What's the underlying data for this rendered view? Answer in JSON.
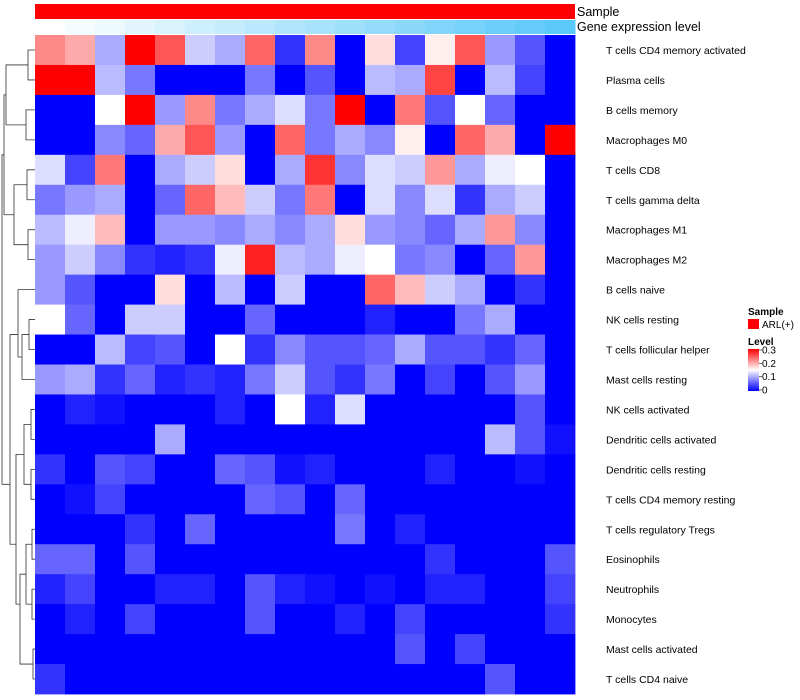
{
  "chart_data": {
    "type": "heatmap",
    "annotations": {
      "sample_label": "Sample",
      "expression_label": "Gene expression level",
      "sample_color": "#ff0000",
      "expression_colors": [
        "#ffffff",
        "#5ac8fa"
      ]
    },
    "rows": [
      "T cells CD4 memory activated",
      "Plasma cells",
      "B cells memory",
      "Macrophages M0",
      "T cells CD8",
      "T cells gamma delta",
      "Macrophages M1",
      "Macrophages M2",
      "B cells naive",
      "NK cells resting",
      "T cells follicular helper",
      "Mast cells resting",
      "NK cells activated",
      "Dendritic cells activated",
      "Dendritic cells resting",
      "T cells CD4 memory resting",
      "T cells regulatory  Tregs",
      "Eosinophils",
      "Neutrophils",
      "Monocytes",
      "Mast cells activated",
      "T cells CD4 naive"
    ],
    "n_columns": 18,
    "values": [
      [
        0.22,
        0.2,
        0.1,
        0.31,
        0.25,
        0.12,
        0.1,
        0.24,
        0.03,
        0.22,
        0.0,
        0.17,
        0.04,
        0.16,
        0.25,
        0.09,
        0.05,
        0.0
      ],
      [
        0.31,
        0.31,
        0.11,
        0.07,
        0.0,
        0.0,
        0.0,
        0.07,
        0.0,
        0.05,
        0.0,
        0.11,
        0.1,
        0.26,
        0.0,
        0.11,
        0.04,
        0.0
      ],
      [
        0.0,
        0.0,
        0.15,
        0.31,
        0.09,
        0.22,
        0.07,
        0.1,
        0.13,
        0.07,
        0.31,
        0.0,
        0.23,
        0.05,
        0.15,
        0.06,
        0.0,
        0.0
      ],
      [
        0.0,
        0.0,
        0.08,
        0.06,
        0.2,
        0.25,
        0.09,
        0.0,
        0.24,
        0.07,
        0.1,
        0.08,
        0.16,
        0.0,
        0.24,
        0.2,
        0.0,
        0.31
      ],
      [
        0.13,
        0.04,
        0.23,
        0.0,
        0.1,
        0.12,
        0.17,
        0.0,
        0.1,
        0.27,
        0.08,
        0.13,
        0.12,
        0.21,
        0.1,
        0.14,
        0.15,
        0.0
      ],
      [
        0.07,
        0.09,
        0.1,
        0.0,
        0.06,
        0.24,
        0.19,
        0.12,
        0.07,
        0.23,
        0.0,
        0.13,
        0.08,
        0.13,
        0.03,
        0.1,
        0.12,
        0.0
      ],
      [
        0.11,
        0.14,
        0.19,
        0.0,
        0.09,
        0.09,
        0.08,
        0.1,
        0.08,
        0.1,
        0.17,
        0.09,
        0.08,
        0.06,
        0.1,
        0.21,
        0.08,
        0.0
      ],
      [
        0.09,
        0.12,
        0.08,
        0.03,
        0.02,
        0.03,
        0.14,
        0.28,
        0.11,
        0.1,
        0.14,
        0.15,
        0.07,
        0.08,
        0.0,
        0.06,
        0.21,
        0.0
      ],
      [
        0.09,
        0.05,
        0.0,
        0.0,
        0.17,
        0.0,
        0.11,
        0.0,
        0.12,
        0.0,
        0.0,
        0.24,
        0.19,
        0.12,
        0.1,
        0.0,
        0.03,
        0.0
      ],
      [
        0.15,
        0.06,
        0.0,
        0.12,
        0.12,
        0.0,
        0.0,
        0.06,
        0.0,
        0.0,
        0.0,
        0.02,
        0.0,
        0.0,
        0.07,
        0.1,
        0.0,
        0.0
      ],
      [
        0.0,
        0.0,
        0.11,
        0.04,
        0.05,
        0.0,
        0.15,
        0.03,
        0.08,
        0.05,
        0.05,
        0.06,
        0.1,
        0.05,
        0.05,
        0.03,
        0.06,
        0.0
      ],
      [
        0.09,
        0.1,
        0.03,
        0.06,
        0.02,
        0.03,
        0.02,
        0.07,
        0.12,
        0.05,
        0.03,
        0.07,
        0.0,
        0.04,
        0.0,
        0.05,
        0.09,
        0.0
      ],
      [
        0.0,
        0.02,
        0.01,
        0.0,
        0.0,
        0.0,
        0.02,
        0.0,
        0.15,
        0.02,
        0.13,
        0.0,
        0.0,
        0.0,
        0.0,
        0.0,
        0.05,
        0.0
      ],
      [
        0.0,
        0.0,
        0.0,
        0.0,
        0.1,
        0.0,
        0.0,
        0.0,
        0.0,
        0.0,
        0.0,
        0.0,
        0.0,
        0.0,
        0.0,
        0.11,
        0.05,
        0.01
      ],
      [
        0.03,
        0.0,
        0.05,
        0.04,
        0.0,
        0.0,
        0.06,
        0.05,
        0.01,
        0.02,
        0.0,
        0.0,
        0.0,
        0.02,
        0.0,
        0.0,
        0.01,
        0.0
      ],
      [
        0.0,
        0.01,
        0.04,
        0.0,
        0.0,
        0.0,
        0.0,
        0.06,
        0.05,
        0.0,
        0.06,
        0.0,
        0.0,
        0.0,
        0.0,
        0.0,
        0.0,
        0.0
      ],
      [
        0.0,
        0.0,
        0.0,
        0.03,
        0.0,
        0.06,
        0.0,
        0.0,
        0.0,
        0.0,
        0.07,
        0.0,
        0.02,
        0.0,
        0.0,
        0.0,
        0.0,
        0.0
      ],
      [
        0.06,
        0.06,
        0.0,
        0.05,
        0.0,
        0.0,
        0.0,
        0.0,
        0.0,
        0.0,
        0.0,
        0.0,
        0.0,
        0.03,
        0.0,
        0.0,
        0.0,
        0.05
      ],
      [
        0.02,
        0.04,
        0.0,
        0.0,
        0.02,
        0.02,
        0.0,
        0.05,
        0.02,
        0.01,
        0.0,
        0.01,
        0.0,
        0.02,
        0.02,
        0.0,
        0.0,
        0.04
      ],
      [
        0.0,
        0.02,
        0.0,
        0.04,
        0.0,
        0.0,
        0.0,
        0.05,
        0.0,
        0.0,
        0.02,
        0.0,
        0.04,
        0.0,
        0.0,
        0.0,
        0.0,
        0.03
      ],
      [
        0.0,
        0.0,
        0.0,
        0.0,
        0.0,
        0.0,
        0.0,
        0.0,
        0.0,
        0.0,
        0.0,
        0.0,
        0.05,
        0.0,
        0.04,
        0.0,
        0.0,
        0.0
      ],
      [
        0.03,
        0.0,
        0.0,
        0.0,
        0.0,
        0.0,
        0.0,
        0.0,
        0.0,
        0.0,
        0.0,
        0.0,
        0.0,
        0.0,
        0.0,
        0.05,
        0.0,
        0.0
      ]
    ],
    "color_scale": {
      "min": 0,
      "max": 0.3,
      "low_color": "#0000ff",
      "mid_color": "#ffffff",
      "high_color": "#ff0000"
    },
    "legend": {
      "sample_title": "Sample",
      "sample_entry": "ARL(+)",
      "level_title": "Level",
      "ticks": [
        "0.3",
        "0.2",
        "0.1",
        "0"
      ]
    }
  }
}
